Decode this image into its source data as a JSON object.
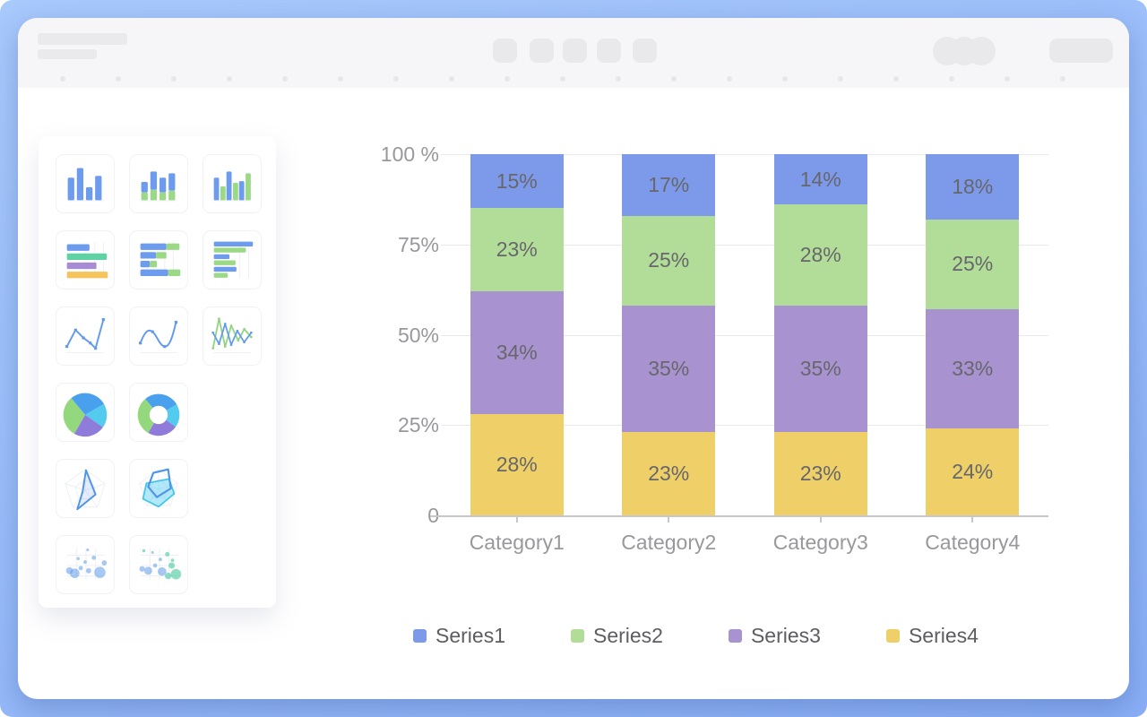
{
  "window": {
    "frame_color_top": "#A8C9FC",
    "frame_color_bottom": "#8AAEF6",
    "appbar_color": "#F6F6F8"
  },
  "header": {
    "skeleton_line_count": 2,
    "toolbar_button_count": 5,
    "avatar_circle_count": 3,
    "action_pill_count": 1,
    "tab_dot_count": 19
  },
  "sidebar": {
    "rows": [
      [
        "bar-chart-icon",
        "stacked-bar-chart-icon",
        "grouped-bar-chart-icon"
      ],
      [
        "hbar-chart-icon",
        "stacked-hbar-chart-icon",
        "grouped-hbar-chart-icon"
      ],
      [
        "line-chart-icon",
        "smooth-line-chart-icon",
        "multi-line-chart-icon"
      ],
      [
        "pie-chart-icon",
        "donut-chart-icon"
      ],
      [
        "radar-chart-icon",
        "multi-radar-chart-icon"
      ],
      [
        "scatter-chart-icon",
        "multi-scatter-chart-icon"
      ]
    ]
  },
  "chart_data": {
    "type": "bar",
    "subtype": "stacked-percent",
    "categories": [
      "Category1",
      "Category2",
      "Category3",
      "Category4"
    ],
    "series": [
      {
        "name": "Series1",
        "color": "#7D99E9",
        "values": [
          15,
          17,
          14,
          18
        ]
      },
      {
        "name": "Series2",
        "color": "#B2DD98",
        "values": [
          23,
          25,
          28,
          25
        ]
      },
      {
        "name": "Series3",
        "color": "#A893D0",
        "values": [
          34,
          35,
          35,
          33
        ]
      },
      {
        "name": "Series4",
        "color": "#EECF68",
        "values": [
          28,
          23,
          23,
          24
        ]
      }
    ],
    "stack_order_top_to_bottom": [
      "Series1",
      "Series2",
      "Series3",
      "Series4"
    ],
    "value_label_suffix": "%",
    "y_axis": {
      "range": [
        0,
        100
      ],
      "ticks": [
        {
          "label": "100 %",
          "value": 100
        },
        {
          "label": "75%",
          "value": 75
        },
        {
          "label": "50%",
          "value": 50
        },
        {
          "label": "25%",
          "value": 25
        },
        {
          "label": "0",
          "value": 0
        }
      ]
    },
    "grid": true,
    "legend_position": "bottom",
    "legend": [
      "Series1",
      "Series2",
      "Series3",
      "Series4"
    ]
  }
}
